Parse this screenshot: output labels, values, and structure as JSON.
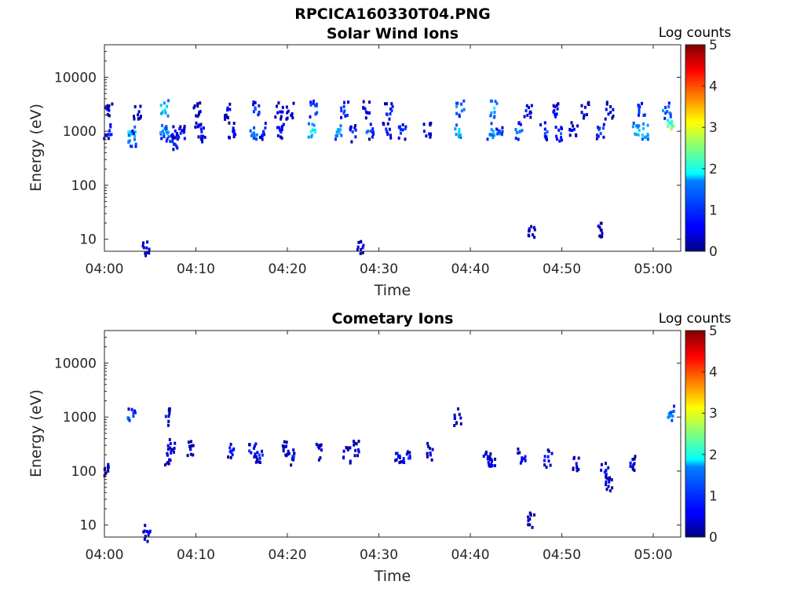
{
  "figure": {
    "title": "RPCICA160330T04.PNG"
  },
  "colors": {
    "axes": "#262626",
    "colormap": "jet",
    "background": "#ffffff"
  },
  "chart_data": [
    {
      "type": "heatmap",
      "title": "Solar Wind Ions",
      "xlabel": "Time",
      "ylabel": "Energy (eV)",
      "x_ticks": [
        "04:00",
        "04:10",
        "04:20",
        "04:30",
        "04:40",
        "04:50",
        "05:00"
      ],
      "x_range_minutes": [
        0,
        63
      ],
      "y_scale": "log",
      "y_ticks": [
        "10",
        "100",
        "1000",
        "10000"
      ],
      "y_range": [
        6,
        40000
      ],
      "colorbar": {
        "title": "Log counts",
        "range": [
          0,
          5
        ],
        "ticks": [
          "0",
          "1",
          "2",
          "3",
          "4",
          "5"
        ]
      },
      "blobs": [
        {
          "t": 0.4,
          "e": 1000,
          "c": 1.2
        },
        {
          "t": 0.5,
          "e": 2300,
          "c": 0.8
        },
        {
          "t": 3.0,
          "e": 900,
          "c": 2.0
        },
        {
          "t": 3.1,
          "e": 700,
          "c": 1.5
        },
        {
          "t": 3.6,
          "e": 2300,
          "c": 0.6
        },
        {
          "t": 6.4,
          "e": 1050,
          "c": 1.7
        },
        {
          "t": 6.6,
          "e": 2600,
          "c": 2.1
        },
        {
          "t": 7.1,
          "e": 900,
          "c": 1.6
        },
        {
          "t": 7.6,
          "e": 600,
          "c": 1.2
        },
        {
          "t": 7.8,
          "e": 1000,
          "c": 1.0
        },
        {
          "t": 8.4,
          "e": 850,
          "c": 1.0
        },
        {
          "t": 10.1,
          "e": 2400,
          "c": 0.7
        },
        {
          "t": 10.3,
          "e": 1000,
          "c": 0.9
        },
        {
          "t": 10.6,
          "e": 900,
          "c": 1.1
        },
        {
          "t": 13.6,
          "e": 2400,
          "c": 0.8
        },
        {
          "t": 13.9,
          "e": 1000,
          "c": 1.0
        },
        {
          "t": 16.3,
          "e": 900,
          "c": 1.5
        },
        {
          "t": 16.6,
          "e": 2500,
          "c": 1.2
        },
        {
          "t": 17.2,
          "e": 1000,
          "c": 1.1
        },
        {
          "t": 19.1,
          "e": 2400,
          "c": 0.8
        },
        {
          "t": 19.3,
          "e": 1000,
          "c": 1.0
        },
        {
          "t": 20.3,
          "e": 2400,
          "c": 0.8
        },
        {
          "t": 22.6,
          "e": 1000,
          "c": 2.0
        },
        {
          "t": 22.9,
          "e": 2500,
          "c": 1.5
        },
        {
          "t": 25.5,
          "e": 1000,
          "c": 1.8
        },
        {
          "t": 26.3,
          "e": 2500,
          "c": 1.3
        },
        {
          "t": 27.3,
          "e": 900,
          "c": 1.2
        },
        {
          "t": 28.6,
          "e": 2500,
          "c": 0.9
        },
        {
          "t": 29.1,
          "e": 1000,
          "c": 1.2
        },
        {
          "t": 30.9,
          "e": 1000,
          "c": 1.0
        },
        {
          "t": 31.1,
          "e": 2300,
          "c": 1.1
        },
        {
          "t": 32.6,
          "e": 1000,
          "c": 1.2
        },
        {
          "t": 35.3,
          "e": 1000,
          "c": 0.9
        },
        {
          "t": 38.6,
          "e": 1000,
          "c": 1.9
        },
        {
          "t": 38.9,
          "e": 2700,
          "c": 1.6
        },
        {
          "t": 42.3,
          "e": 1000,
          "c": 1.8
        },
        {
          "t": 42.6,
          "e": 2600,
          "c": 1.9
        },
        {
          "t": 43.2,
          "e": 900,
          "c": 1.3
        },
        {
          "t": 45.3,
          "e": 1000,
          "c": 1.5
        },
        {
          "t": 46.3,
          "e": 2400,
          "c": 0.9
        },
        {
          "t": 48.1,
          "e": 1000,
          "c": 1.2
        },
        {
          "t": 49.2,
          "e": 2400,
          "c": 1.0
        },
        {
          "t": 49.6,
          "e": 900,
          "c": 1.2
        },
        {
          "t": 51.3,
          "e": 1000,
          "c": 0.9
        },
        {
          "t": 52.6,
          "e": 2400,
          "c": 0.8
        },
        {
          "t": 54.2,
          "e": 1000,
          "c": 1.4
        },
        {
          "t": 55.2,
          "e": 2400,
          "c": 0.8
        },
        {
          "t": 58.2,
          "e": 1000,
          "c": 1.8
        },
        {
          "t": 58.7,
          "e": 2400,
          "c": 1.3
        },
        {
          "t": 59.1,
          "e": 1000,
          "c": 2.0
        },
        {
          "t": 61.8,
          "e": 1100,
          "c": 2.8
        },
        {
          "t": 61.5,
          "e": 2400,
          "c": 1.5
        },
        {
          "t": 4.6,
          "e": 7,
          "c": 0.8
        },
        {
          "t": 27.9,
          "e": 7,
          "c": 0.8
        },
        {
          "t": 46.7,
          "e": 15,
          "c": 0.6
        },
        {
          "t": 54.0,
          "e": 15,
          "c": 0.6
        }
      ]
    },
    {
      "type": "heatmap",
      "title": "Cometary Ions",
      "xlabel": "Time",
      "ylabel": "Energy (eV)",
      "x_ticks": [
        "04:00",
        "04:10",
        "04:20",
        "04:30",
        "04:40",
        "04:50",
        "05:00"
      ],
      "x_range_minutes": [
        0,
        63
      ],
      "y_scale": "log",
      "y_ticks": [
        "10",
        "100",
        "1000",
        "10000"
      ],
      "y_range": [
        6,
        40000
      ],
      "colorbar": {
        "title": "Log counts",
        "range": [
          0,
          5
        ],
        "ticks": [
          "0",
          "1",
          "2",
          "3",
          "4",
          "5"
        ]
      },
      "blobs": [
        {
          "t": 3.0,
          "e": 1000,
          "c": 1.4
        },
        {
          "t": 6.8,
          "e": 1000,
          "c": 0.8
        },
        {
          "t": 7.3,
          "e": 300,
          "c": 0.8
        },
        {
          "t": 7.0,
          "e": 180,
          "c": 0.9
        },
        {
          "t": 9.5,
          "e": 250,
          "c": 0.7
        },
        {
          "t": 13.8,
          "e": 250,
          "c": 1.0
        },
        {
          "t": 16.2,
          "e": 250,
          "c": 1.1
        },
        {
          "t": 17.0,
          "e": 200,
          "c": 1.0
        },
        {
          "t": 19.7,
          "e": 250,
          "c": 0.8
        },
        {
          "t": 20.4,
          "e": 180,
          "c": 0.9
        },
        {
          "t": 23.5,
          "e": 220,
          "c": 1.0
        },
        {
          "t": 26.5,
          "e": 200,
          "c": 0.9
        },
        {
          "t": 27.6,
          "e": 250,
          "c": 0.8
        },
        {
          "t": 32.2,
          "e": 200,
          "c": 0.9
        },
        {
          "t": 33.0,
          "e": 170,
          "c": 1.0
        },
        {
          "t": 35.6,
          "e": 230,
          "c": 0.8
        },
        {
          "t": 41.9,
          "e": 160,
          "c": 1.0
        },
        {
          "t": 42.5,
          "e": 130,
          "c": 0.9
        },
        {
          "t": 45.6,
          "e": 180,
          "c": 0.9
        },
        {
          "t": 48.5,
          "e": 170,
          "c": 1.0
        },
        {
          "t": 51.5,
          "e": 140,
          "c": 0.9
        },
        {
          "t": 54.7,
          "e": 100,
          "c": 1.0
        },
        {
          "t": 55.2,
          "e": 60,
          "c": 0.8
        },
        {
          "t": 57.6,
          "e": 140,
          "c": 0.8
        },
        {
          "t": 38.6,
          "e": 1000,
          "c": 0.8
        },
        {
          "t": 61.9,
          "e": 1100,
          "c": 1.5
        },
        {
          "t": 0.4,
          "e": 110,
          "c": 0.6
        },
        {
          "t": 4.6,
          "e": 7,
          "c": 0.8
        },
        {
          "t": 46.7,
          "e": 12,
          "c": 0.6
        }
      ]
    }
  ]
}
